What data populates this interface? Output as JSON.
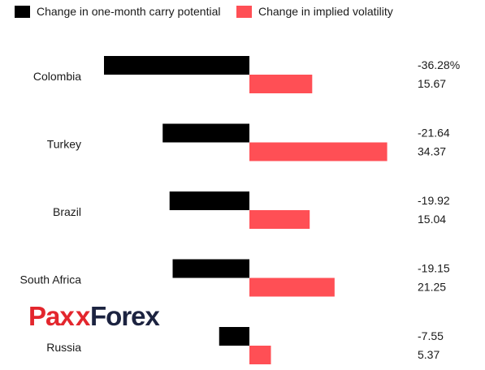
{
  "chart_data": {
    "type": "bar",
    "orientation": "horizontal",
    "categories": [
      "Colombia",
      "Turkey",
      "Brazil",
      "South Africa",
      "Russia"
    ],
    "series": [
      {
        "name": "Change in one-month carry potential",
        "color": "#000000",
        "values": [
          -36.28,
          -21.64,
          -19.92,
          -19.15,
          -7.55
        ],
        "labels": [
          "-36.28%",
          "-21.64",
          "-19.92",
          "-19.15",
          "-7.55"
        ]
      },
      {
        "name": "Change in implied volatility",
        "color": "#ff4f55",
        "values": [
          15.67,
          34.37,
          15.04,
          21.25,
          5.37
        ],
        "labels": [
          "15.67",
          "34.37",
          "15.04",
          "21.25",
          "5.37"
        ]
      }
    ],
    "xlim": [
      -36.28,
      34.37
    ],
    "legend_position": "top-left",
    "grid": false
  },
  "logo": {
    "text_left": "Pax",
    "text_x": "x",
    "text_right": "Forex",
    "colors": {
      "red": "#e3262d",
      "dark": "#1c2340"
    }
  }
}
